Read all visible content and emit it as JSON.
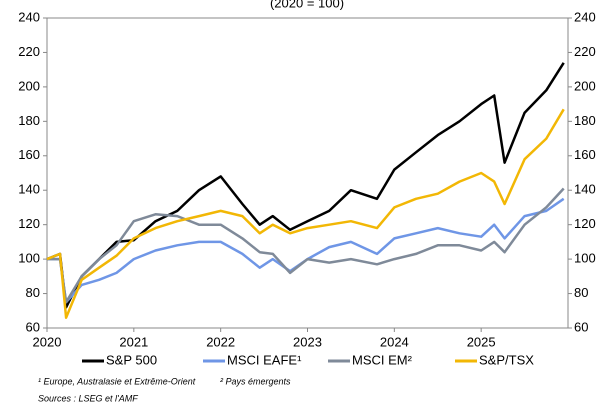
{
  "chart_data": {
    "type": "line",
    "title": "(2020 = 100)",
    "x": [
      2020.0,
      2020.15,
      2020.22,
      2020.4,
      2020.6,
      2020.8,
      2021.0,
      2021.25,
      2021.5,
      2021.75,
      2022.0,
      2022.25,
      2022.45,
      2022.6,
      2022.8,
      2023.0,
      2023.25,
      2023.5,
      2023.8,
      2024.0,
      2024.25,
      2024.5,
      2024.75,
      2025.0,
      2025.15,
      2025.27,
      2025.5,
      2025.75,
      2025.95
    ],
    "series": [
      {
        "name": "S&P 500",
        "color": "#000000",
        "values": [
          100,
          103,
          72,
          90,
          100,
          110,
          111,
          122,
          128,
          140,
          148,
          132,
          120,
          125,
          117,
          122,
          128,
          140,
          135,
          152,
          162,
          172,
          180,
          190,
          195,
          156,
          185,
          198,
          214
        ]
      },
      {
        "name": "MSCI EAFE¹",
        "color": "#6f96e6",
        "values": [
          100,
          100,
          75,
          85,
          88,
          92,
          100,
          105,
          108,
          110,
          110,
          103,
          95,
          100,
          93,
          100,
          107,
          110,
          103,
          112,
          115,
          118,
          115,
          113,
          120,
          112,
          125,
          128,
          135
        ]
      },
      {
        "name": "MSCI EM²",
        "color": "#7f8a99",
        "values": [
          100,
          100,
          75,
          90,
          100,
          108,
          122,
          126,
          125,
          120,
          120,
          112,
          104,
          103,
          92,
          100,
          98,
          100,
          97,
          100,
          103,
          108,
          108,
          105,
          110,
          104,
          120,
          130,
          141
        ]
      },
      {
        "name": "S&P/TSX",
        "color": "#f2b705",
        "values": [
          100,
          103,
          66,
          88,
          95,
          102,
          112,
          118,
          122,
          125,
          128,
          125,
          115,
          120,
          115,
          118,
          120,
          122,
          118,
          130,
          135,
          138,
          145,
          150,
          145,
          132,
          158,
          170,
          187
        ]
      }
    ],
    "xlim": [
      2020,
      2026
    ],
    "xticks": [
      2020,
      2021,
      2022,
      2023,
      2024,
      2025
    ],
    "ylim": [
      60,
      240
    ],
    "yticks": [
      60,
      80,
      100,
      120,
      140,
      160,
      180,
      200,
      220,
      240
    ],
    "y2lim": [
      60,
      240
    ],
    "y2ticks": [
      60,
      80,
      100,
      120,
      140,
      160,
      180,
      200,
      220,
      240
    ],
    "legend": "bottom",
    "footnotes": [
      "¹ Europe, Australasie et Extrême-Orient",
      "² Pays émergents",
      "Sources : LSEG et l'AMF"
    ]
  }
}
